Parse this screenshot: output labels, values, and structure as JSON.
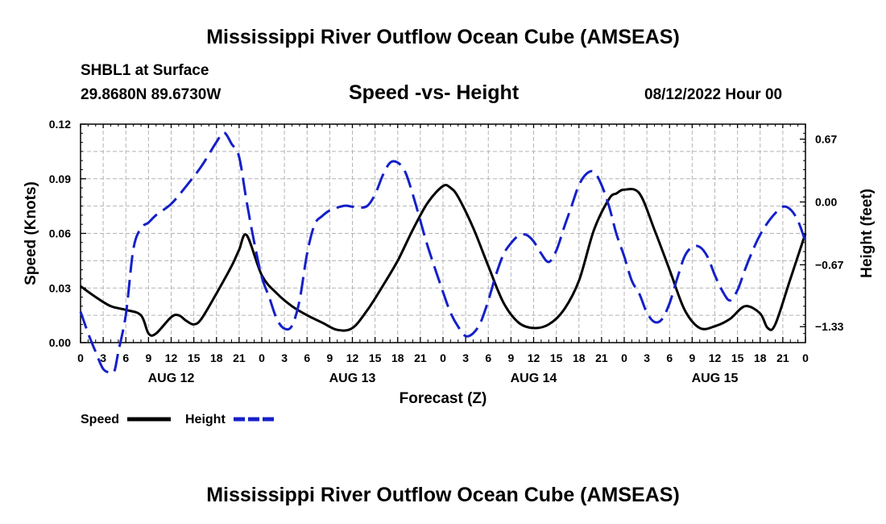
{
  "page_title": "Mississippi River Outflow Ocean Cube (AMSEAS)",
  "station": "SHBL1 at Surface",
  "coords": "29.8680N  89.6730W",
  "date_label": "08/12/2022 Hour 00",
  "footer_title": "Mississippi River Outflow Ocean Cube (AMSEAS)",
  "chart_data": {
    "type": "line",
    "title": "Speed -vs- Height",
    "xlabel": "Forecast (Z)",
    "ylabel": "Speed (Knots)",
    "y2label": "Height (feet)",
    "xlim": [
      0,
      96
    ],
    "ylim": [
      0,
      0.12
    ],
    "y2lim": [
      -1.5,
      0.83
    ],
    "x_ticks": [
      0,
      3,
      6,
      9,
      12,
      15,
      18,
      21,
      24,
      27,
      30,
      33,
      36,
      39,
      42,
      45,
      48,
      51,
      54,
      57,
      60,
      63,
      66,
      69,
      72,
      75,
      78,
      81,
      84,
      87,
      90,
      93,
      96
    ],
    "x_tick_labels": [
      "0",
      "3",
      "6",
      "9",
      "12",
      "15",
      "18",
      "21",
      "0",
      "3",
      "6",
      "9",
      "12",
      "15",
      "18",
      "21",
      "0",
      "3",
      "6",
      "9",
      "12",
      "15",
      "18",
      "21",
      "0",
      "3",
      "6",
      "9",
      "12",
      "15",
      "18",
      "21",
      "0"
    ],
    "date_labels": [
      {
        "x": 12,
        "label": "AUG 12"
      },
      {
        "x": 36,
        "label": "AUG 13"
      },
      {
        "x": 60,
        "label": "AUG 14"
      },
      {
        "x": 84,
        "label": "AUG 15"
      }
    ],
    "y_ticks": [
      0,
      0.03,
      0.06,
      0.09,
      0.12
    ],
    "y_tick_labels": [
      "0.00",
      "0.03",
      "0.06",
      "0.09",
      "0.12"
    ],
    "y2_ticks": [
      0.67,
      0.0,
      -0.67,
      -1.33
    ],
    "y2_tick_labels": [
      "0.67",
      "0.00",
      "−0.67",
      "−1.33"
    ],
    "grid": true,
    "series": [
      {
        "name": "Speed",
        "color": "#000000",
        "axis": "left",
        "x": [
          0,
          2,
          4,
          6,
          8,
          9,
          10,
          12,
          13,
          14,
          15,
          16,
          18,
          20,
          21,
          22,
          24,
          26,
          28,
          30,
          32,
          34,
          36,
          38,
          40,
          42,
          44,
          46,
          48,
          49,
          50,
          52,
          54,
          56,
          58,
          60,
          62,
          64,
          66,
          68,
          70,
          71,
          72,
          74,
          76,
          78,
          80,
          82,
          84,
          86,
          88,
          90,
          91,
          92,
          94,
          96
        ],
        "y": [
          0.031,
          0.025,
          0.02,
          0.018,
          0.015,
          0.005,
          0.005,
          0.014,
          0.015,
          0.012,
          0.01,
          0.013,
          0.027,
          0.042,
          0.051,
          0.059,
          0.037,
          0.027,
          0.02,
          0.015,
          0.011,
          0.007,
          0.008,
          0.018,
          0.031,
          0.045,
          0.062,
          0.077,
          0.086,
          0.085,
          0.08,
          0.063,
          0.042,
          0.022,
          0.011,
          0.008,
          0.01,
          0.018,
          0.034,
          0.062,
          0.079,
          0.082,
          0.084,
          0.082,
          0.062,
          0.04,
          0.018,
          0.008,
          0.009,
          0.013,
          0.02,
          0.016,
          0.008,
          0.01,
          0.035,
          0.06
        ]
      },
      {
        "name": "Height",
        "color": "#1420c8",
        "axis": "right",
        "x": [
          0,
          1,
          2,
          3,
          4,
          4.5,
          5,
          6,
          7,
          8,
          9,
          10,
          12,
          14,
          16,
          18,
          19,
          20,
          21,
          22,
          23,
          24,
          25,
          26,
          27,
          28,
          29,
          30,
          31,
          32,
          33,
          34,
          35,
          36,
          37,
          38,
          39,
          40,
          41,
          42,
          43,
          44,
          45,
          46,
          48,
          49,
          50,
          51,
          52,
          53,
          54,
          55,
          56,
          57,
          58,
          59,
          60,
          61,
          62,
          63,
          64,
          65,
          66,
          67,
          68,
          69,
          70,
          71,
          72,
          73,
          74,
          75,
          76,
          77,
          78,
          79,
          80,
          81,
          82,
          83,
          84,
          85,
          86,
          87,
          88,
          89,
          90,
          91,
          92,
          93,
          94,
          95,
          96
        ],
        "y": [
          -1.17,
          -1.4,
          -1.6,
          -1.78,
          -1.82,
          -1.8,
          -1.6,
          -1.2,
          -0.5,
          -0.28,
          -0.22,
          -0.14,
          -0.02,
          0.17,
          0.38,
          0.64,
          0.74,
          0.62,
          0.48,
          0.0,
          -0.43,
          -0.8,
          -1.02,
          -1.25,
          -1.35,
          -1.32,
          -1.05,
          -0.55,
          -0.24,
          -0.15,
          -0.09,
          -0.06,
          -0.04,
          -0.05,
          -0.06,
          -0.04,
          0.08,
          0.28,
          0.42,
          0.42,
          0.32,
          0.08,
          -0.2,
          -0.48,
          -0.96,
          -1.18,
          -1.33,
          -1.43,
          -1.4,
          -1.28,
          -1.05,
          -0.78,
          -0.56,
          -0.44,
          -0.36,
          -0.35,
          -0.42,
          -0.55,
          -0.64,
          -0.52,
          -0.28,
          -0.05,
          0.18,
          0.3,
          0.32,
          0.18,
          -0.05,
          -0.35,
          -0.58,
          -0.84,
          -0.98,
          -1.18,
          -1.28,
          -1.25,
          -1.08,
          -0.82,
          -0.58,
          -0.48,
          -0.48,
          -0.58,
          -0.78,
          -0.95,
          -1.05,
          -0.94,
          -0.72,
          -0.52,
          -0.35,
          -0.22,
          -0.12,
          -0.05,
          -0.08,
          -0.2,
          -0.42
        ]
      }
    ],
    "legend": [
      {
        "label": "Speed",
        "color": "#000000",
        "dash": "solid"
      },
      {
        "label": "Height",
        "color": "#1420c8",
        "dash": "dashed"
      }
    ]
  }
}
